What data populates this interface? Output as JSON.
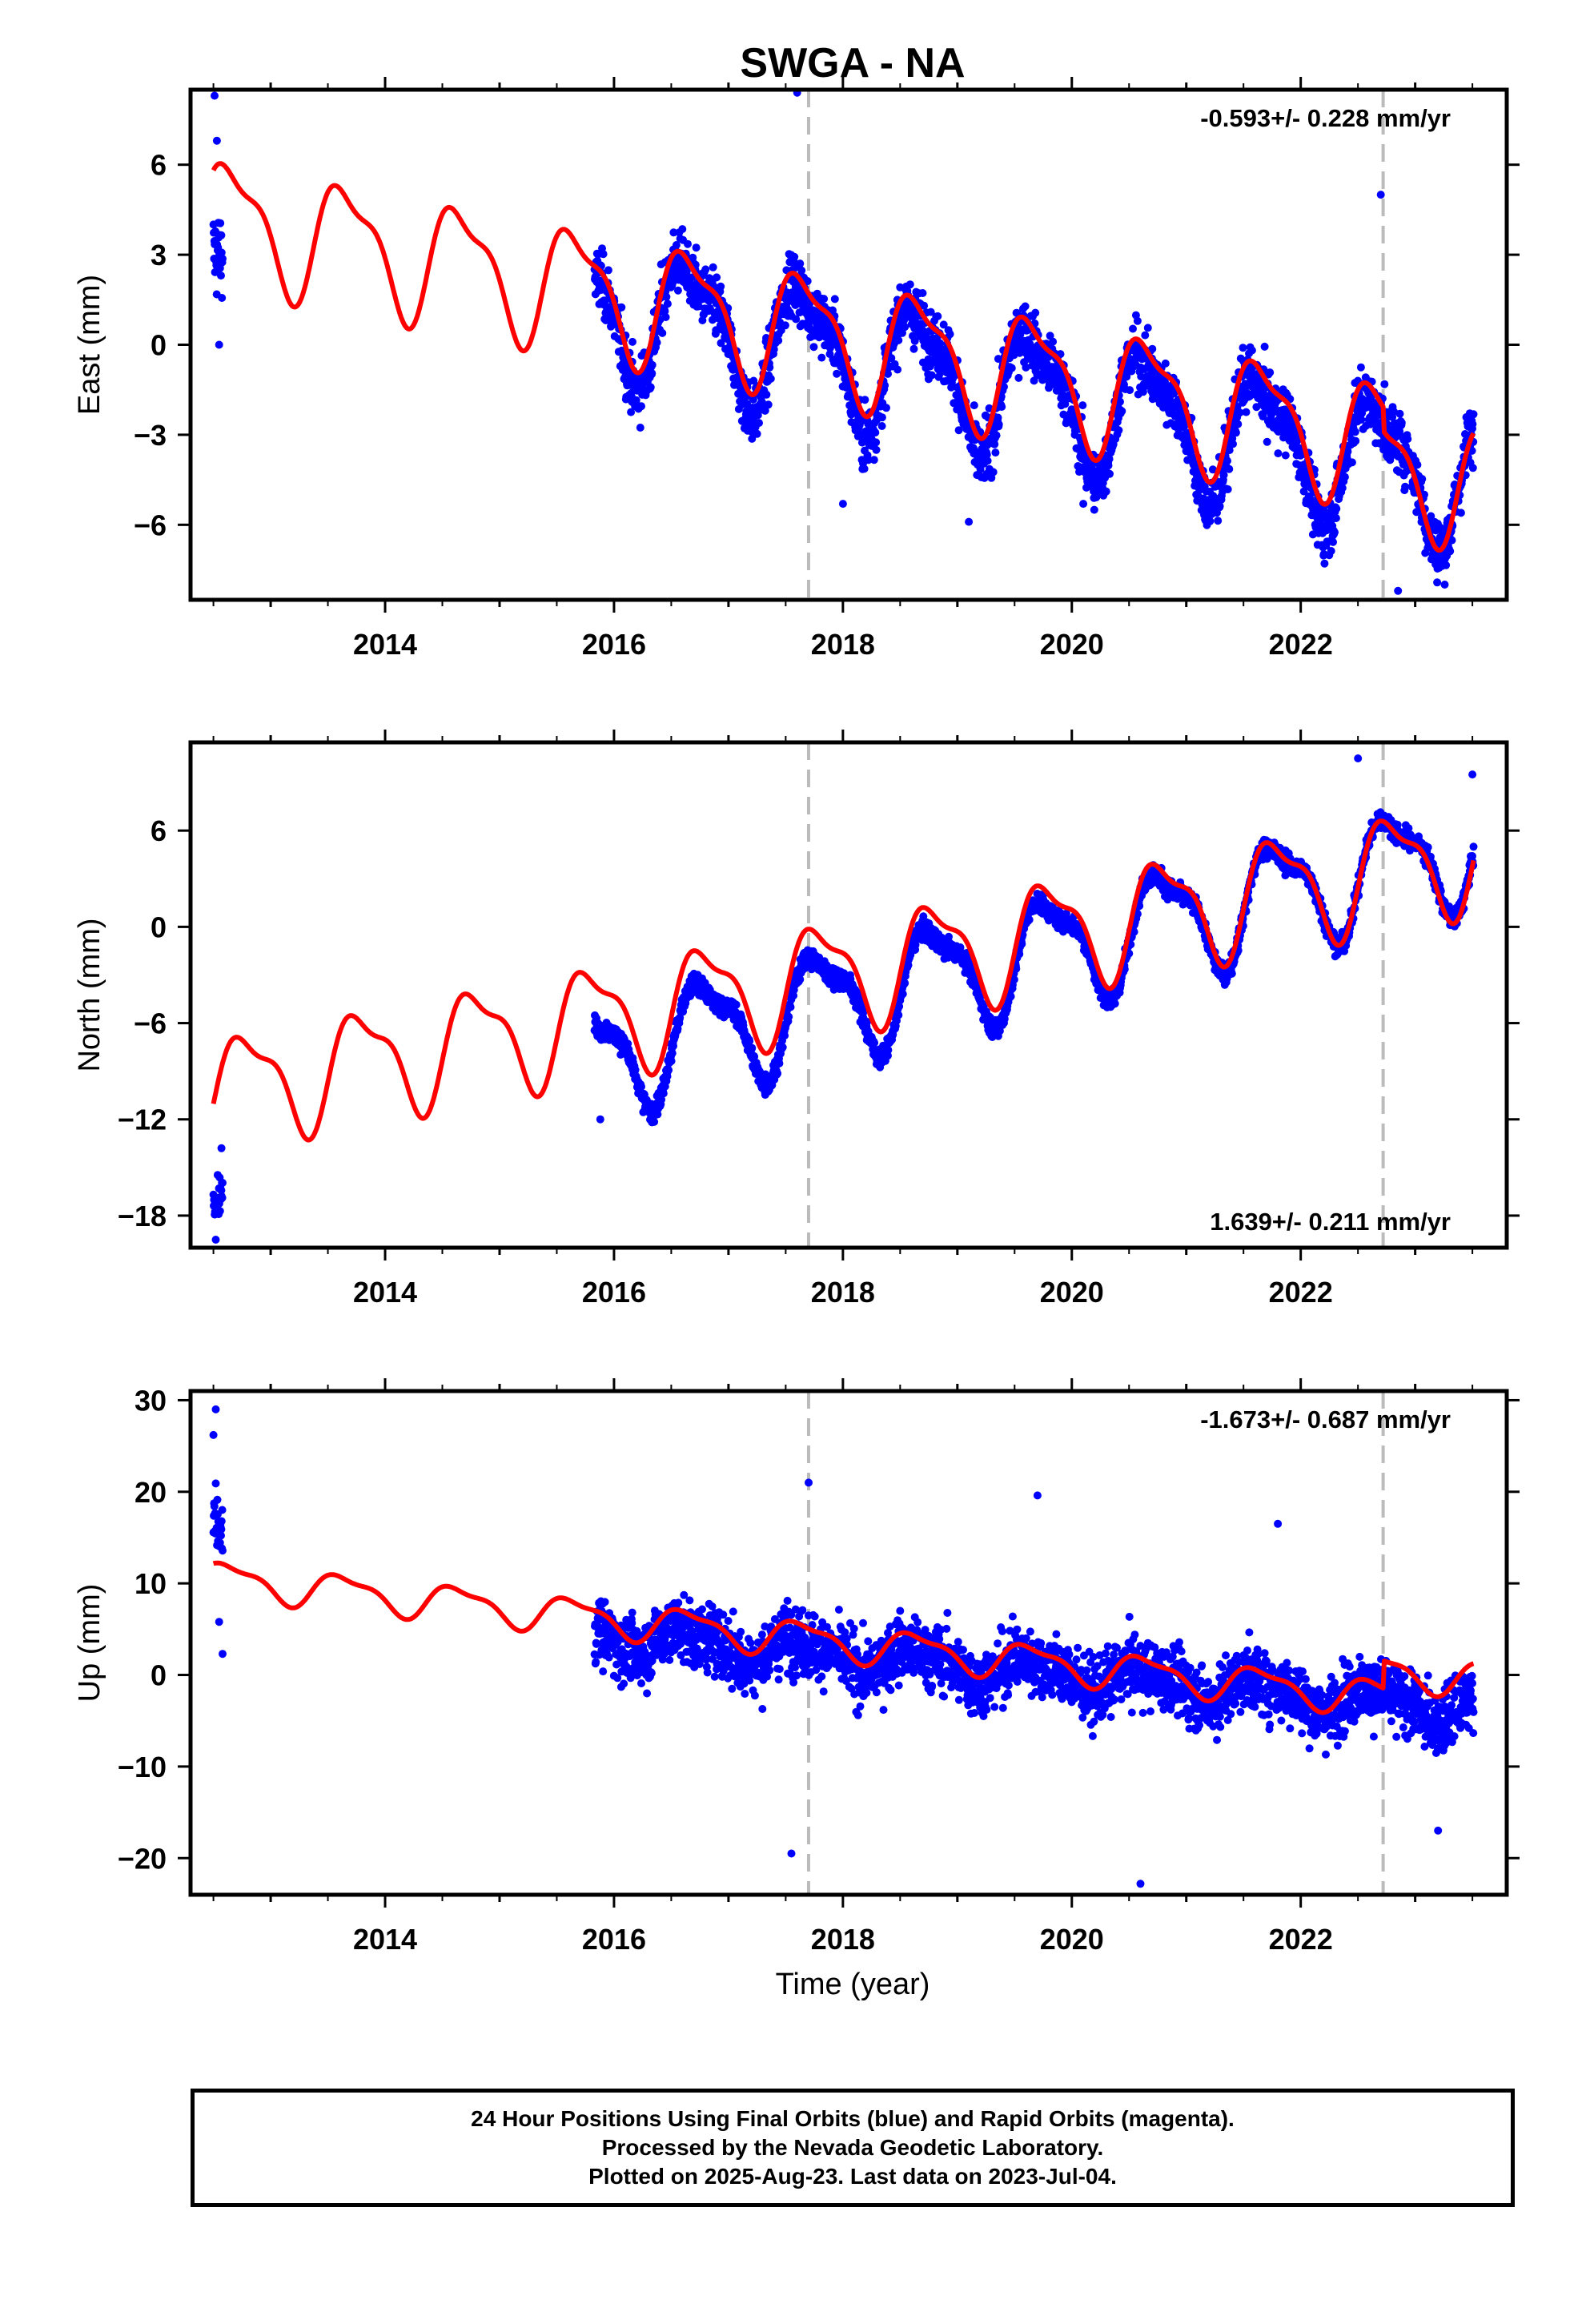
{
  "chart_data": {
    "type": "scatter",
    "title": "SWGA - NA",
    "xlabel": "Time (year)",
    "xlim": [
      2012.3,
      2023.8
    ],
    "x_ticks": [
      2014,
      2016,
      2018,
      2020,
      2022
    ],
    "x_tick_labels": [
      "2014",
      "2016",
      "2018",
      "2020",
      "2022"
    ],
    "vertical_markers": [
      2017.7,
      2022.72
    ],
    "colors": {
      "final_orbits": "#0000ff",
      "model": "#ff0000",
      "marker_line": "#bbbbbb"
    },
    "panels": [
      {
        "ylabel": "East (mm)",
        "ylim": [
          -8.5,
          8.5
        ],
        "y_ticks": [
          6,
          3,
          0,
          -3,
          -6
        ],
        "y_tick_labels": [
          "6",
          "3",
          "0",
          "−3",
          "−6"
        ],
        "rate": "-0.593+/- 0.228 mm/yr",
        "rate_position": "top-right",
        "series": [
          {
            "style": "points",
            "segments": [
              {
                "x_range": [
                  2012.5,
                  2012.58
                ],
                "trend_start": 3.0,
                "trend_end": 3.0,
                "amplitude": 0.3,
                "phase": 0.0,
                "scatter": 1.8,
                "outliers": [
                  [
                    2012.51,
                    8.3
                  ],
                  [
                    2012.53,
                    6.8
                  ],
                  [
                    2012.55,
                    0.0
                  ]
                ]
              },
              {
                "x_range": [
                  2015.83,
                  2023.51
                ],
                "trend_start": 1.4,
                "trend_end": -4.5,
                "amplitude": 2.0,
                "phase": 0.42,
                "scatter": 1.3,
                "outliers": [
                  [
                    2017.6,
                    8.4
                  ],
                  [
                    2018.0,
                    -5.3
                  ],
                  [
                    2019.1,
                    -5.9
                  ],
                  [
                    2020.1,
                    -5.3
                  ],
                  [
                    2022.7,
                    5.0
                  ],
                  [
                    2022.85,
                    -8.2
                  ]
                ]
              }
            ]
          },
          {
            "style": "line",
            "description": "model",
            "trend_start": 4.4,
            "trend_end": -4.0,
            "amplitude": 1.9,
            "phase": 0.42,
            "offsets": [
              [
                2022.72,
                -0.8
              ]
            ]
          }
        ]
      },
      {
        "ylabel": "North (mm)",
        "ylim": [
          -20.0,
          11.5
        ],
        "y_ticks": [
          6,
          0,
          -6,
          -12,
          -18
        ],
        "y_tick_labels": [
          "6",
          "0",
          "−6",
          "−12",
          "−18"
        ],
        "rate": "1.639+/- 0.211 mm/yr",
        "rate_position": "bottom-right",
        "series": [
          {
            "style": "points",
            "segments": [
              {
                "x_range": [
                  2012.5,
                  2012.58
                ],
                "trend_start": -17.0,
                "trend_end": -16.5,
                "amplitude": 0.3,
                "phase": 0.0,
                "scatter": 1.3,
                "outliers": [
                  [
                    2012.52,
                    -19.5
                  ],
                  [
                    2012.57,
                    -13.8
                  ]
                ]
              },
              {
                "x_range": [
                  2015.83,
                  2023.51
                ],
                "trend_start": -8.2,
                "trend_end": 5.0,
                "amplitude": 3.2,
                "phase": 0.55,
                "scatter": 0.8,
                "outliers": [
                  [
                    2015.88,
                    -12.0
                  ],
                  [
                    2022.5,
                    10.5
                  ],
                  [
                    2023.5,
                    9.5
                  ]
                ]
              }
            ]
          },
          {
            "style": "line",
            "description": "model",
            "trend_start": -10.5,
            "trend_end": 5.0,
            "amplitude": 3.2,
            "phase": 0.55,
            "offsets": []
          }
        ]
      },
      {
        "ylabel": "Up (mm)",
        "ylim": [
          -24.0,
          31.0
        ],
        "y_ticks": [
          30,
          20,
          10,
          0,
          -10,
          -20
        ],
        "y_tick_labels": [
          "30",
          "20",
          "10",
          "0",
          "−10",
          "−20"
        ],
        "rate": "-1.673+/- 0.687 mm/yr",
        "rate_position": "top-right",
        "series": [
          {
            "style": "points",
            "segments": [
              {
                "x_range": [
                  2012.5,
                  2012.58
                ],
                "trend_start": 17.0,
                "trend_end": 15.0,
                "amplitude": 1.0,
                "phase": 0.0,
                "scatter": 4.0,
                "outliers": [
                  [
                    2012.52,
                    29.0
                  ],
                  [
                    2012.5,
                    26.2
                  ],
                  [
                    2012.58,
                    2.3
                  ],
                  [
                    2012.55,
                    5.8
                  ]
                ]
              },
              {
                "x_range": [
                  2015.83,
                  2023.51
                ],
                "trend_start": 4.5,
                "trend_end": -3.8,
                "amplitude": 1.4,
                "phase": 0.4,
                "scatter": 4.5,
                "outliers": [
                  [
                    2017.7,
                    21.0
                  ],
                  [
                    2017.55,
                    -19.5
                  ],
                  [
                    2019.7,
                    19.6
                  ],
                  [
                    2020.6,
                    -22.8
                  ],
                  [
                    2021.8,
                    16.5
                  ],
                  [
                    2023.2,
                    -17.0
                  ]
                ]
              }
            ]
          },
          {
            "style": "line",
            "description": "model",
            "trend_start": 10.8,
            "trend_end": -3.8,
            "amplitude": 1.8,
            "phase": 0.4,
            "offsets": [
              [
                2022.72,
                3.0
              ]
            ]
          }
        ]
      }
    ]
  },
  "footer": {
    "line1": "24 Hour Positions Using Final Orbits (blue) and Rapid Orbits (magenta).",
    "line2": "Processed by the Nevada Geodetic Laboratory.",
    "line3": "Plotted on 2025-Aug-23. Last data on 2023-Jul-04."
  }
}
